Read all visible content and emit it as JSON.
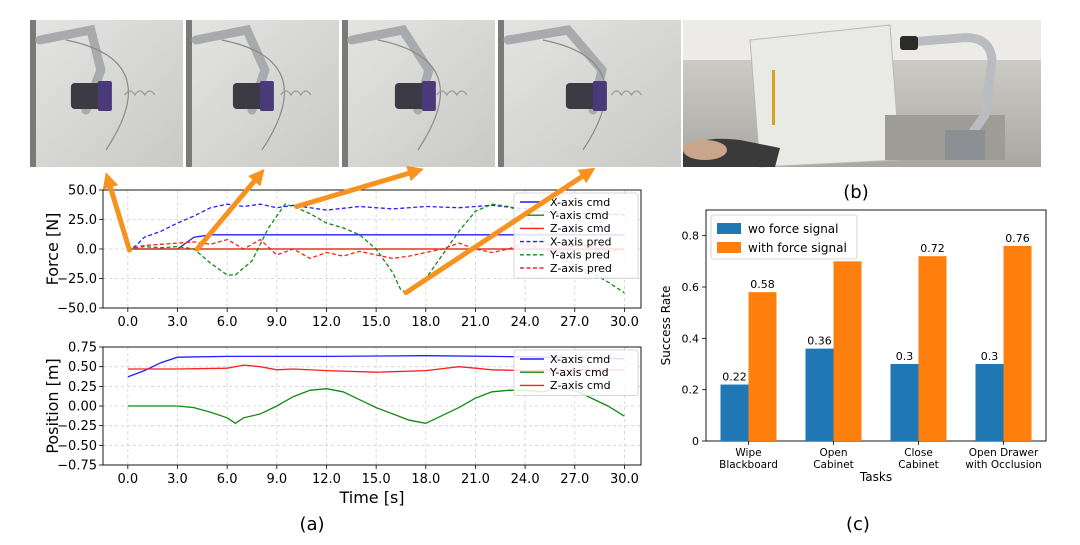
{
  "photos": {
    "a_frames": [
      {
        "name": "wipe-frame-1"
      },
      {
        "name": "wipe-frame-2"
      },
      {
        "name": "wipe-frame-3"
      },
      {
        "name": "wipe-frame-4"
      }
    ],
    "b_photo": {
      "name": "teleoperation-photo"
    }
  },
  "captions": {
    "a": "(a)",
    "b": "(b)",
    "c": "(c)"
  },
  "colors": {
    "x": "#1f1fff",
    "y": "#128a12",
    "z": "#ff1f1f",
    "arrow": "#f7921e",
    "wo": "#1f77b4",
    "with": "#ff7f0e"
  },
  "chart_data": [
    {
      "type": "line",
      "id": "force",
      "ylabel": "Force [N]",
      "xlim": [
        -1.5,
        31
      ],
      "ylim": [
        -50,
        50
      ],
      "yticks": [
        50.0,
        25.0,
        0.0,
        -25.0,
        -50.0
      ],
      "ytick_labels": [
        "50.0",
        "25.0",
        "0.0",
        "−25.0",
        "−50.0"
      ],
      "xticks": [
        0,
        3,
        6,
        9,
        12,
        15,
        18,
        21,
        24,
        27,
        30
      ],
      "xtick_labels": [
        "0.0",
        "3.0",
        "6.0",
        "9.0",
        "12.0",
        "15.0",
        "18.0",
        "21.0",
        "24.0",
        "27.0",
        "30.0"
      ],
      "grid": true,
      "legend": "top-right",
      "series": [
        {
          "name": "X-axis cmd",
          "color": "#1f1fff",
          "dash": false,
          "x": [
            0,
            3,
            4,
            5,
            30
          ],
          "y": [
            0,
            0,
            10,
            12,
            12
          ]
        },
        {
          "name": "Y-axis cmd",
          "color": "#128a12",
          "dash": false,
          "x": [
            0,
            30
          ],
          "y": [
            0,
            0
          ]
        },
        {
          "name": "Z-axis cmd",
          "color": "#ff1f1f",
          "dash": false,
          "x": [
            0,
            30
          ],
          "y": [
            0,
            0
          ]
        },
        {
          "name": "X-axis pred",
          "color": "#1f1fff",
          "dash": true,
          "x": [
            0,
            0.5,
            1,
            2,
            3,
            4,
            5,
            6,
            7,
            8,
            9,
            10,
            12,
            14,
            16,
            18,
            20,
            22,
            24,
            26,
            28,
            30
          ],
          "y": [
            -2,
            3,
            10,
            15,
            22,
            28,
            35,
            38,
            36,
            38,
            35,
            37,
            33,
            36,
            34,
            36,
            35,
            37,
            34,
            30,
            30,
            29
          ]
        },
        {
          "name": "Y-axis pred",
          "color": "#128a12",
          "dash": true,
          "x": [
            0,
            1,
            2,
            3,
            4,
            5,
            6,
            6.5,
            7.5,
            8.5,
            9.5,
            10,
            11,
            12,
            13,
            14,
            15,
            16,
            16.5,
            17,
            18,
            19,
            20,
            21,
            22,
            23,
            24,
            25,
            26,
            27,
            28,
            29,
            30
          ],
          "y": [
            0,
            2,
            1,
            2,
            0,
            -12,
            -22,
            -22,
            -10,
            18,
            38,
            36,
            30,
            22,
            18,
            12,
            0,
            -20,
            -35,
            -37,
            -25,
            -5,
            15,
            32,
            38,
            36,
            30,
            10,
            -5,
            -15,
            -20,
            -28,
            -37
          ]
        },
        {
          "name": "Z-axis pred",
          "color": "#ff1f1f",
          "dash": true,
          "x": [
            0,
            1,
            2,
            3,
            4,
            5,
            6,
            7,
            8,
            9,
            10,
            11,
            12,
            13,
            14,
            15,
            16,
            17,
            18,
            19,
            20,
            21,
            22,
            23,
            24,
            25,
            26,
            27,
            28,
            29,
            30
          ],
          "y": [
            0,
            3,
            4,
            5,
            6,
            4,
            8,
            0,
            8,
            -5,
            0,
            -8,
            -3,
            -6,
            -2,
            -5,
            -8,
            -6,
            -3,
            0,
            5,
            0,
            -3,
            0,
            5,
            0,
            -3,
            4,
            2,
            -2,
            0
          ]
        }
      ]
    },
    {
      "type": "line",
      "id": "position",
      "ylabel": "Position [m]",
      "xlabel": "Time [s]",
      "xlim": [
        -1.5,
        31
      ],
      "ylim": [
        -0.75,
        0.75
      ],
      "yticks": [
        0.75,
        0.5,
        0.25,
        0.0,
        -0.25,
        -0.5,
        -0.75
      ],
      "ytick_labels": [
        "0.75",
        "0.50",
        "0.25",
        "0.00",
        "−0.25",
        "−0.50",
        "−0.75"
      ],
      "xticks": [
        0,
        3,
        6,
        9,
        12,
        15,
        18,
        21,
        24,
        27,
        30
      ],
      "xtick_labels": [
        "0.0",
        "3.0",
        "6.0",
        "9.0",
        "12.0",
        "15.0",
        "18.0",
        "21.0",
        "24.0",
        "27.0",
        "30.0"
      ],
      "grid": true,
      "legend": "top-right",
      "series": [
        {
          "name": "X-axis cmd",
          "color": "#1f1fff",
          "dash": false,
          "x": [
            0,
            1,
            2,
            3,
            6,
            12,
            18,
            22,
            26,
            30
          ],
          "y": [
            0.37,
            0.45,
            0.55,
            0.62,
            0.63,
            0.63,
            0.64,
            0.63,
            0.62,
            0.6
          ]
        },
        {
          "name": "Y-axis cmd",
          "color": "#128a12",
          "dash": false,
          "x": [
            0,
            3,
            4,
            5,
            6,
            6.5,
            7,
            8,
            9,
            10,
            11,
            12,
            13,
            14,
            15,
            16,
            17,
            18,
            19,
            20,
            21,
            22,
            23,
            24,
            25,
            26,
            27,
            28,
            29,
            30
          ],
          "y": [
            0.0,
            0.0,
            -0.02,
            -0.08,
            -0.15,
            -0.22,
            -0.15,
            -0.1,
            0.0,
            0.12,
            0.2,
            0.22,
            0.18,
            0.08,
            -0.02,
            -0.1,
            -0.18,
            -0.22,
            -0.12,
            -0.02,
            0.1,
            0.18,
            0.2,
            0.2,
            0.18,
            0.22,
            0.2,
            0.1,
            0.0,
            -0.13
          ]
        },
        {
          "name": "Z-axis cmd",
          "color": "#ff1f1f",
          "dash": false,
          "x": [
            0,
            3,
            6,
            7,
            8,
            9,
            10,
            12,
            15,
            18,
            20,
            21,
            22,
            24,
            27,
            30
          ],
          "y": [
            0.47,
            0.47,
            0.48,
            0.52,
            0.5,
            0.46,
            0.47,
            0.45,
            0.43,
            0.45,
            0.5,
            0.48,
            0.46,
            0.45,
            0.46,
            0.46
          ]
        }
      ]
    },
    {
      "type": "bar",
      "id": "success",
      "ylabel": "Success Rate",
      "xlabel": "Tasks",
      "ylim": [
        0,
        0.9
      ],
      "yticks": [
        0,
        0.2,
        0.4,
        0.6,
        0.8
      ],
      "ytick_labels": [
        "0",
        "0.2",
        "0.4",
        "0.6",
        "0.8"
      ],
      "categories": [
        [
          "Wipe",
          "Blackboard"
        ],
        [
          "Open",
          "Cabinet"
        ],
        [
          "Close",
          "Cabinet"
        ],
        [
          "Open Drawer",
          "with Occlusion"
        ]
      ],
      "legend": "top-left",
      "series": [
        {
          "name": "wo force signal",
          "color": "#1f77b4",
          "values": [
            0.22,
            0.36,
            0.3,
            0.3
          ],
          "labels": [
            "0.22",
            "0.36",
            "0.3",
            "0.3"
          ]
        },
        {
          "name": "with force signal",
          "color": "#ff7f0e",
          "values": [
            0.58,
            0.7,
            0.72,
            0.76
          ],
          "labels": [
            "0.58",
            "0.7",
            "0.72",
            "0.76"
          ]
        }
      ]
    }
  ]
}
